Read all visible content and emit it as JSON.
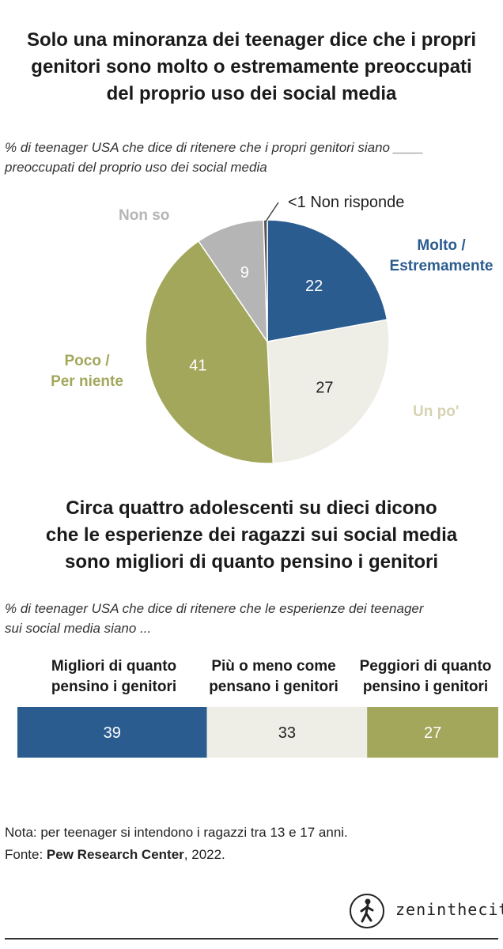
{
  "title1": [
    "Solo una minoranza dei teenager dice che i propri",
    "genitori sono molto o estremamente preoccupati",
    "del proprio uso dei social media"
  ],
  "subtitle1": [
    "% di teenager USA che dice di ritenere che i propri genitori siano ____",
    "preoccupati del proprio uso dei social media"
  ],
  "title2": [
    "Circa quattro adolescenti su dieci dicono",
    "che le esperienze dei ragazzi sui social media",
    "sono migliori di quanto pensino i genitori"
  ],
  "subtitle2": [
    "% di teenager USA che dice di ritenere che le esperienze dei teenager",
    "sui social media siano ..."
  ],
  "pie_labels": {
    "molto": [
      "Molto /",
      "Estremamente"
    ],
    "unpo": "Un po'",
    "poco": [
      "Poco /",
      "Per niente"
    ],
    "nonso": "Non so",
    "nonrisponde": "<1 Non risponde"
  },
  "bar_headers": [
    [
      "Migliori di quanto",
      "pensino i genitori"
    ],
    [
      "Più o meno come",
      "pensano i genitori"
    ],
    [
      "Peggiori di quanto",
      "pensino i genitori"
    ]
  ],
  "note": "Nota: per teenager si intendono i ragazzi tra 13 e 17 anni.",
  "source_prefix": "Fonte: ",
  "source_name": "Pew Research Center",
  "source_suffix": ", 2022.",
  "logo_text": "zeninthecity",
  "colors": {
    "blue": "#2b5c8f",
    "beige": "#eeede6",
    "olive": "#a3a75c",
    "gray": "#b5b5b5",
    "dark": "#555555"
  },
  "chart_data": [
    {
      "type": "pie",
      "slices": [
        {
          "label": "Molto / Estremamente",
          "value": 22,
          "value_label": "22"
        },
        {
          "label": "Un po'",
          "value": 27,
          "value_label": "27"
        },
        {
          "label": "Poco / Per niente",
          "value": 41,
          "value_label": "41"
        },
        {
          "label": "Non so",
          "value": 9,
          "value_label": "9"
        },
        {
          "label": "Non risponde",
          "value": 0.5,
          "value_label": "<1"
        }
      ]
    },
    {
      "type": "bar",
      "orientation": "horizontal-stacked",
      "categories": [
        "Migliori di quanto pensino i genitori",
        "Più o meno come pensano i genitori",
        "Peggiori di quanto pensino i genitori"
      ],
      "values": [
        39,
        33,
        27
      ]
    }
  ]
}
